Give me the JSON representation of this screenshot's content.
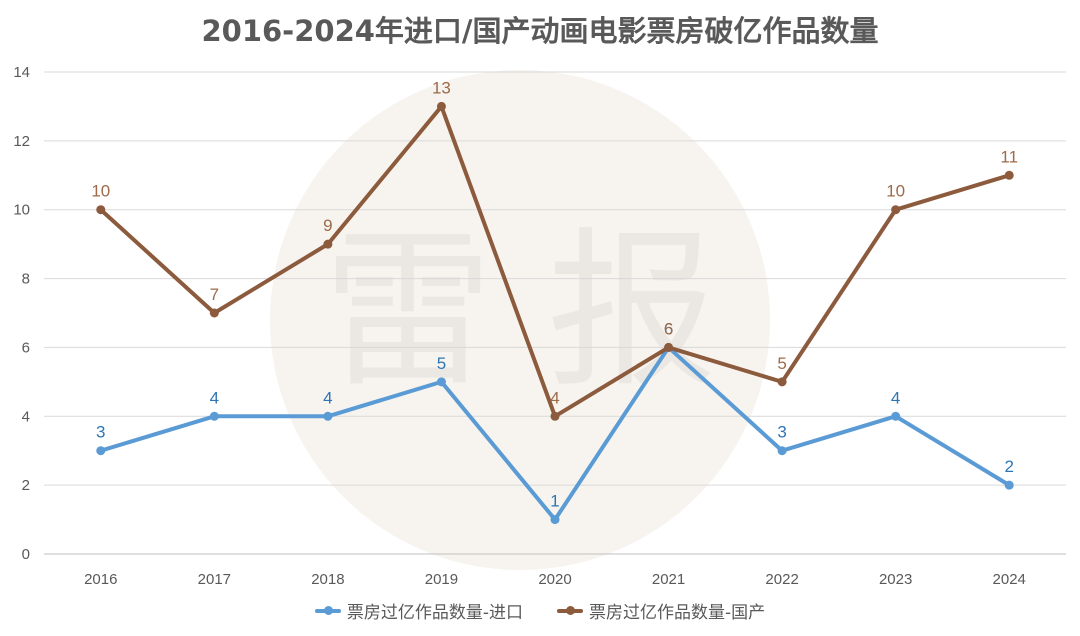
{
  "chart_data": {
    "type": "line",
    "title": "2016-2024年进口/国产动画电影票房破亿作品数量",
    "xlabel": "",
    "ylabel": "",
    "categories": [
      "2016",
      "2017",
      "2018",
      "2019",
      "2020",
      "2021",
      "2022",
      "2023",
      "2024"
    ],
    "ylim": [
      0,
      14
    ],
    "yticks": [
      0,
      2,
      4,
      6,
      8,
      10,
      12,
      14
    ],
    "grid": true,
    "legend_position": "bottom",
    "series": [
      {
        "name": "票房过亿作品数量-进口",
        "color": "#5b9bd5",
        "label_color": "#2e75b6",
        "values": [
          3,
          4,
          4,
          5,
          1,
          6,
          3,
          4,
          2
        ]
      },
      {
        "name": "票房过亿作品数量-国产",
        "color": "#8c5a3c",
        "label_color": "#9c6b4a",
        "values": [
          10,
          7,
          9,
          13,
          4,
          6,
          5,
          10,
          11
        ]
      }
    ]
  },
  "watermark": "雷 报"
}
